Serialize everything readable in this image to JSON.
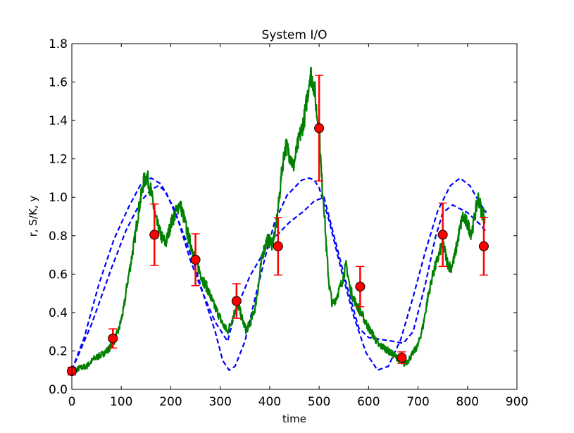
{
  "chart_data": {
    "type": "line",
    "title": "System I/O",
    "xlabel": "time",
    "ylabel": "r, S/K, y",
    "xlim": [
      0,
      900
    ],
    "ylim": [
      0.0,
      1.8
    ],
    "xticks": [
      "0",
      "100",
      "200",
      "300",
      "400",
      "500",
      "600",
      "700",
      "800",
      "900"
    ],
    "yticks": [
      "0.0",
      "0.2",
      "0.4",
      "0.6",
      "0.8",
      "1.0",
      "1.2",
      "1.4",
      "1.6",
      "1.8"
    ],
    "grid": false,
    "legend": "none",
    "colors": {
      "reference": "#0000ff",
      "state": "#008000",
      "observations": "#ff0000"
    },
    "series": [
      {
        "style": "dashed",
        "color": "#0000ff",
        "points": [
          [
            0,
            0.1
          ],
          [
            25,
            0.27
          ],
          [
            55,
            0.55
          ],
          [
            85,
            0.78
          ],
          [
            115,
            0.95
          ],
          [
            140,
            1.07
          ],
          [
            160,
            1.1
          ],
          [
            180,
            1.07
          ],
          [
            205,
            0.95
          ],
          [
            230,
            0.78
          ],
          [
            250,
            0.63
          ],
          [
            270,
            0.46
          ],
          [
            290,
            0.3
          ],
          [
            305,
            0.15
          ],
          [
            318,
            0.1
          ],
          [
            330,
            0.12
          ],
          [
            350,
            0.25
          ],
          [
            370,
            0.47
          ],
          [
            390,
            0.68
          ],
          [
            410,
            0.87
          ],
          [
            435,
            1.01
          ],
          [
            465,
            1.09
          ],
          [
            480,
            1.1
          ],
          [
            490,
            1.09
          ],
          [
            500,
            1.05
          ],
          [
            520,
            0.88
          ],
          [
            545,
            0.62
          ],
          [
            570,
            0.38
          ],
          [
            595,
            0.19
          ],
          [
            618,
            0.1
          ],
          [
            640,
            0.12
          ],
          [
            665,
            0.26
          ],
          [
            690,
            0.48
          ],
          [
            715,
            0.72
          ],
          [
            740,
            0.93
          ],
          [
            765,
            1.06
          ],
          [
            785,
            1.1
          ],
          [
            805,
            1.06
          ],
          [
            825,
            0.97
          ],
          [
            838,
            0.92
          ]
        ]
      },
      {
        "style": "dashed",
        "color": "#0000ff",
        "points": [
          [
            0,
            0.1
          ],
          [
            40,
            0.34
          ],
          [
            80,
            0.63
          ],
          [
            110,
            0.83
          ],
          [
            140,
            0.98
          ],
          [
            160,
            1.04
          ],
          [
            175,
            1.06
          ],
          [
            190,
            1.03
          ],
          [
            215,
            0.88
          ],
          [
            240,
            0.67
          ],
          [
            265,
            0.5
          ],
          [
            290,
            0.35
          ],
          [
            315,
            0.25
          ],
          [
            330,
            0.4
          ],
          [
            360,
            0.59
          ],
          [
            385,
            0.7
          ],
          [
            410,
            0.79
          ],
          [
            440,
            0.87
          ],
          [
            470,
            0.93
          ],
          [
            490,
            0.98
          ],
          [
            510,
            1.0
          ],
          [
            530,
            0.8
          ],
          [
            555,
            0.55
          ],
          [
            580,
            0.32
          ],
          [
            600,
            0.27
          ],
          [
            625,
            0.26
          ],
          [
            650,
            0.25
          ],
          [
            670,
            0.24
          ],
          [
            690,
            0.3
          ],
          [
            715,
            0.55
          ],
          [
            735,
            0.79
          ],
          [
            750,
            0.92
          ],
          [
            770,
            0.96
          ],
          [
            800,
            0.92
          ],
          [
            825,
            0.86
          ],
          [
            838,
            0.82
          ]
        ]
      },
      {
        "style": "solid",
        "color": "#008000",
        "points": [
          [
            0,
            0.09
          ],
          [
            15,
            0.11
          ],
          [
            30,
            0.12
          ],
          [
            45,
            0.16
          ],
          [
            60,
            0.18
          ],
          [
            75,
            0.21
          ],
          [
            85,
            0.25
          ],
          [
            95,
            0.31
          ],
          [
            105,
            0.42
          ],
          [
            112,
            0.55
          ],
          [
            120,
            0.67
          ],
          [
            128,
            0.8
          ],
          [
            135,
            0.93
          ],
          [
            145,
            1.08
          ],
          [
            152,
            1.11
          ],
          [
            160,
            1.03
          ],
          [
            170,
            0.88
          ],
          [
            180,
            0.8
          ],
          [
            190,
            0.76
          ],
          [
            200,
            0.86
          ],
          [
            210,
            0.92
          ],
          [
            218,
            0.97
          ],
          [
            225,
            0.91
          ],
          [
            235,
            0.8
          ],
          [
            245,
            0.72
          ],
          [
            255,
            0.64
          ],
          [
            265,
            0.57
          ],
          [
            275,
            0.52
          ],
          [
            285,
            0.45
          ],
          [
            295,
            0.4
          ],
          [
            305,
            0.34
          ],
          [
            315,
            0.3
          ],
          [
            325,
            0.37
          ],
          [
            335,
            0.45
          ],
          [
            345,
            0.36
          ],
          [
            352,
            0.31
          ],
          [
            360,
            0.34
          ],
          [
            370,
            0.42
          ],
          [
            378,
            0.55
          ],
          [
            385,
            0.7
          ],
          [
            395,
            0.78
          ],
          [
            405,
            0.76
          ],
          [
            412,
            0.83
          ],
          [
            418,
            0.96
          ],
          [
            425,
            1.15
          ],
          [
            432,
            1.27
          ],
          [
            440,
            1.23
          ],
          [
            448,
            1.16
          ],
          [
            455,
            1.25
          ],
          [
            462,
            1.33
          ],
          [
            470,
            1.41
          ],
          [
            476,
            1.52
          ],
          [
            482,
            1.65
          ],
          [
            490,
            1.58
          ],
          [
            495,
            1.44
          ],
          [
            500,
            1.36
          ],
          [
            505,
            1.1
          ],
          [
            510,
            0.95
          ],
          [
            515,
            0.72
          ],
          [
            520,
            0.55
          ],
          [
            527,
            0.44
          ],
          [
            535,
            0.48
          ],
          [
            545,
            0.55
          ],
          [
            555,
            0.65
          ],
          [
            562,
            0.53
          ],
          [
            570,
            0.47
          ],
          [
            580,
            0.42
          ],
          [
            590,
            0.37
          ],
          [
            600,
            0.32
          ],
          [
            610,
            0.28
          ],
          [
            620,
            0.23
          ],
          [
            630,
            0.22
          ],
          [
            640,
            0.2
          ],
          [
            650,
            0.18
          ],
          [
            660,
            0.16
          ],
          [
            670,
            0.13
          ],
          [
            680,
            0.15
          ],
          [
            690,
            0.19
          ],
          [
            700,
            0.23
          ],
          [
            710,
            0.33
          ],
          [
            720,
            0.48
          ],
          [
            730,
            0.6
          ],
          [
            740,
            0.68
          ],
          [
            750,
            0.77
          ],
          [
            758,
            0.67
          ],
          [
            766,
            0.63
          ],
          [
            774,
            0.69
          ],
          [
            782,
            0.8
          ],
          [
            790,
            0.9
          ],
          [
            800,
            0.86
          ],
          [
            808,
            0.81
          ],
          [
            816,
            0.92
          ],
          [
            822,
            1.0
          ],
          [
            828,
            0.93
          ],
          [
            835,
            0.9
          ]
        ]
      },
      {
        "style": "errorbar",
        "color": "#ff0000",
        "points": [
          {
            "x": 0,
            "y": 0.095,
            "err": 0.02
          },
          {
            "x": 83,
            "y": 0.265,
            "err": 0.05
          },
          {
            "x": 167,
            "y": 0.805,
            "err": 0.16
          },
          {
            "x": 250,
            "y": 0.675,
            "err": 0.135
          },
          {
            "x": 333,
            "y": 0.46,
            "err": 0.09
          },
          {
            "x": 417,
            "y": 0.745,
            "err": 0.15
          },
          {
            "x": 500,
            "y": 1.36,
            "err": 0.275
          },
          {
            "x": 583,
            "y": 0.535,
            "err": 0.105
          },
          {
            "x": 667,
            "y": 0.165,
            "err": 0.03
          },
          {
            "x": 750,
            "y": 0.805,
            "err": 0.165
          },
          {
            "x": 833,
            "y": 0.745,
            "err": 0.15
          }
        ]
      }
    ]
  }
}
